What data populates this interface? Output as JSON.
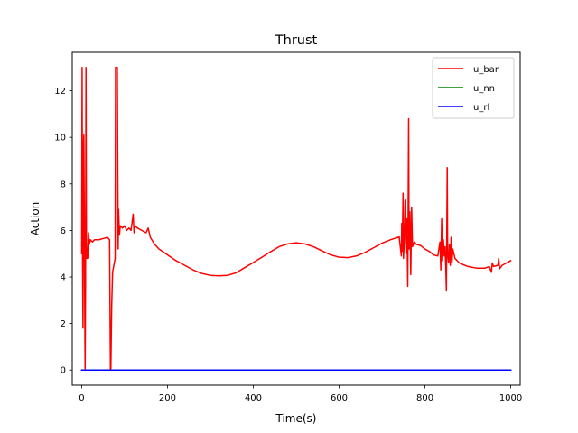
{
  "chart_data": {
    "type": "line",
    "title": "Thrust",
    "xlabel": "Time(s)",
    "ylabel": "Action",
    "xlim": [
      -22,
      1022
    ],
    "ylim": [
      -0.65,
      13.65
    ],
    "x_ticks": [
      0,
      200,
      400,
      600,
      800,
      1000
    ],
    "y_ticks": [
      0,
      2,
      4,
      6,
      8,
      10,
      12
    ],
    "grid": false,
    "legend_position": "top-right",
    "series": [
      {
        "name": "u_bar",
        "color": "#ff0000",
        "points": [
          [
            0,
            5.0
          ],
          [
            1,
            13.0
          ],
          [
            2,
            4.8
          ],
          [
            3,
            1.8
          ],
          [
            4,
            9.5
          ],
          [
            5,
            10.1
          ],
          [
            6,
            7.0
          ],
          [
            7,
            3.0
          ],
          [
            8,
            0.05
          ],
          [
            9,
            3.5
          ],
          [
            10,
            13.0
          ],
          [
            11,
            6.0
          ],
          [
            12,
            4.8
          ],
          [
            14,
            4.8
          ],
          [
            16,
            5.9
          ],
          [
            18,
            5.4
          ],
          [
            20,
            5.6
          ],
          [
            25,
            5.5
          ],
          [
            30,
            5.6
          ],
          [
            40,
            5.6
          ],
          [
            50,
            5.65
          ],
          [
            60,
            5.7
          ],
          [
            65,
            5.6
          ],
          [
            67,
            0.05
          ],
          [
            68,
            0.05
          ],
          [
            70,
            2.8
          ],
          [
            72,
            4.2
          ],
          [
            75,
            4.5
          ],
          [
            78,
            4.8
          ],
          [
            79,
            13.0
          ],
          [
            83,
            13.0
          ],
          [
            85,
            5.2
          ],
          [
            86,
            6.9
          ],
          [
            88,
            5.8
          ],
          [
            90,
            6.2
          ],
          [
            95,
            6.1
          ],
          [
            100,
            6.2
          ],
          [
            105,
            6.0
          ],
          [
            110,
            6.1
          ],
          [
            115,
            6.0
          ],
          [
            120,
            6.7
          ],
          [
            122,
            5.9
          ],
          [
            125,
            6.2
          ],
          [
            130,
            6.1
          ],
          [
            140,
            6.0
          ],
          [
            150,
            5.9
          ],
          [
            155,
            6.1
          ],
          [
            160,
            5.7
          ],
          [
            170,
            5.4
          ],
          [
            180,
            5.2
          ],
          [
            200,
            4.95
          ],
          [
            220,
            4.7
          ],
          [
            240,
            4.5
          ],
          [
            260,
            4.3
          ],
          [
            280,
            4.15
          ],
          [
            300,
            4.07
          ],
          [
            320,
            4.05
          ],
          [
            340,
            4.07
          ],
          [
            360,
            4.18
          ],
          [
            380,
            4.4
          ],
          [
            400,
            4.62
          ],
          [
            420,
            4.85
          ],
          [
            440,
            5.08
          ],
          [
            460,
            5.3
          ],
          [
            480,
            5.42
          ],
          [
            500,
            5.47
          ],
          [
            520,
            5.42
          ],
          [
            540,
            5.3
          ],
          [
            560,
            5.12
          ],
          [
            580,
            4.95
          ],
          [
            600,
            4.85
          ],
          [
            620,
            4.83
          ],
          [
            640,
            4.9
          ],
          [
            660,
            5.05
          ],
          [
            680,
            5.25
          ],
          [
            700,
            5.45
          ],
          [
            720,
            5.6
          ],
          [
            740,
            5.72
          ],
          [
            745,
            4.9
          ],
          [
            746,
            6.3
          ],
          [
            747,
            5.1
          ],
          [
            749,
            7.6
          ],
          [
            750,
            4.8
          ],
          [
            752,
            5.6
          ],
          [
            754,
            7.3
          ],
          [
            756,
            5.0
          ],
          [
            758,
            6.5
          ],
          [
            760,
            3.6
          ],
          [
            762,
            10.8
          ],
          [
            763,
            5.2
          ],
          [
            765,
            6.8
          ],
          [
            767,
            4.1
          ],
          [
            769,
            7.0
          ],
          [
            771,
            5.3
          ],
          [
            775,
            5.5
          ],
          [
            780,
            5.4
          ],
          [
            790,
            5.35
          ],
          [
            800,
            5.2
          ],
          [
            810,
            5.1
          ],
          [
            820,
            4.95
          ],
          [
            830,
            4.9
          ],
          [
            835,
            5.5
          ],
          [
            837,
            4.3
          ],
          [
            839,
            6.5
          ],
          [
            841,
            4.7
          ],
          [
            843,
            5.6
          ],
          [
            845,
            4.9
          ],
          [
            847,
            5.3
          ],
          [
            849,
            4.2
          ],
          [
            850,
            3.4
          ],
          [
            852,
            8.7
          ],
          [
            853,
            5.0
          ],
          [
            855,
            4.6
          ],
          [
            857,
            5.4
          ],
          [
            859,
            4.5
          ],
          [
            861,
            5.7
          ],
          [
            863,
            4.6
          ],
          [
            865,
            5.2
          ],
          [
            870,
            4.8
          ],
          [
            880,
            4.6
          ],
          [
            900,
            4.45
          ],
          [
            920,
            4.38
          ],
          [
            940,
            4.38
          ],
          [
            950,
            4.45
          ],
          [
            955,
            4.2
          ],
          [
            957,
            4.6
          ],
          [
            960,
            4.45
          ],
          [
            970,
            4.5
          ],
          [
            972,
            4.8
          ],
          [
            974,
            4.35
          ],
          [
            980,
            4.5
          ],
          [
            1000,
            4.7
          ]
        ]
      },
      {
        "name": "u_nn",
        "color": "#008000",
        "points": [
          [
            0,
            0.0
          ],
          [
            1000,
            0.0
          ]
        ]
      },
      {
        "name": "u_rl",
        "color": "#0000ff",
        "points": [
          [
            0,
            0.0
          ],
          [
            1000,
            0.0
          ]
        ]
      }
    ]
  }
}
